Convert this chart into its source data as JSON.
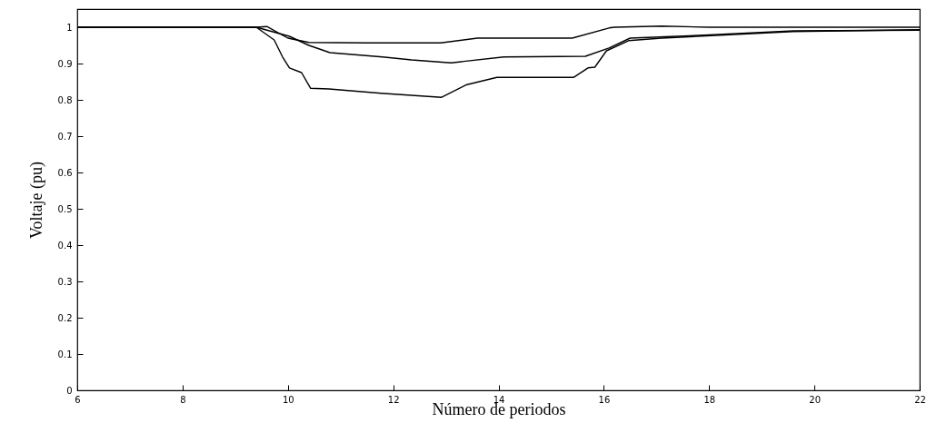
{
  "chart_data": {
    "type": "line",
    "xlabel": "Número de periodos",
    "ylabel": "Voltaje (pu)",
    "xlim": [
      6,
      22
    ],
    "ylim": [
      0,
      1.05
    ],
    "xticks": [
      6,
      8,
      10,
      12,
      14,
      16,
      18,
      20,
      22
    ],
    "yticks": [
      0,
      0.1,
      0.2,
      0.3,
      0.4,
      0.5,
      0.6,
      0.7,
      0.8,
      0.9,
      1
    ],
    "grid": false,
    "line_style": "solid",
    "marker": "none",
    "series": [
      {
        "color": "#000000",
        "x": [
          6,
          9.4,
          9.6,
          10.0,
          10.4,
          11.5,
          12.9,
          13.6,
          15.4,
          16.1,
          16.2,
          17.1,
          18,
          22
        ],
        "values": [
          1.0,
          1.0,
          1.002,
          0.97,
          0.958,
          0.957,
          0.957,
          0.97,
          0.97,
          0.998,
          1.0,
          1.003,
          1.0,
          1.0
        ]
      },
      {
        "color": "#000000",
        "x": [
          6,
          9.4,
          10.03,
          10.4,
          10.8,
          11.8,
          12.35,
          13.1,
          14.1,
          15.65,
          16.1,
          16.5,
          17.9,
          19.6,
          22
        ],
        "values": [
          1.0,
          1.0,
          0.975,
          0.95,
          0.93,
          0.918,
          0.91,
          0.902,
          0.918,
          0.92,
          0.943,
          0.97,
          0.978,
          0.99,
          0.992
        ]
      },
      {
        "color": "#000000",
        "x": [
          6,
          9.4,
          9.74,
          9.9,
          10.03,
          10.26,
          10.43,
          10.78,
          11.77,
          12.92,
          13.4,
          13.97,
          15.43,
          15.7,
          15.83,
          16.05,
          16.47,
          17.1,
          19.6,
          22
        ],
        "values": [
          1.0,
          1.0,
          0.965,
          0.918,
          0.888,
          0.875,
          0.832,
          0.83,
          0.818,
          0.807,
          0.842,
          0.862,
          0.862,
          0.888,
          0.89,
          0.935,
          0.963,
          0.97,
          0.988,
          0.993
        ]
      }
    ]
  }
}
